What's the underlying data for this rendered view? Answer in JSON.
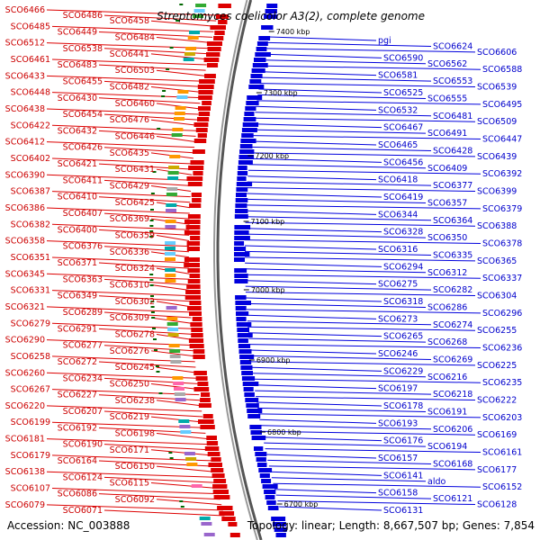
{
  "title": "Streptomyces coelicolor A3(2), complete genome",
  "accession_text": "Accession: NC_003888",
  "topology_text": "Topology: linear; Length: 8,667,507 bp; Genes: 7,854",
  "colors": {
    "forward": "#dd0000",
    "reverse": "#0000dd",
    "backbone": "#888888",
    "tick": "#006600"
  },
  "ticks": [
    {
      "label": "7400 kbp",
      "side": "right"
    },
    {
      "label": "7300 kbp",
      "side": "right"
    },
    {
      "label": "7200 kbp",
      "side": "right"
    },
    {
      "label": "7100 kbp",
      "side": "right"
    },
    {
      "label": "7000 kbp",
      "side": "right"
    },
    {
      "label": "6900 kbp",
      "side": "right"
    },
    {
      "label": "6800 kbp",
      "side": "right"
    },
    {
      "label": "6700 kbp",
      "side": "right"
    }
  ],
  "left_labels": [
    "SCO6466",
    "SCO6486",
    "SCO6458",
    "SCO6485",
    "SCO6449",
    "SCO6484",
    "SCO6512",
    "SCO6538",
    "SCO6441",
    "SCO6461",
    "SCO6483",
    "SCO6503",
    "SCO6433",
    "SCO6455",
    "SCO6482",
    "SCO6448",
    "SCO6430",
    "SCO6460",
    "SCO6438",
    "SCO6454",
    "SCO6476",
    "SCO6422",
    "SCO6432",
    "SCO6446",
    "SCO6412",
    "SCO6426",
    "SCO6435",
    "SCO6402",
    "SCO6421",
    "SCO6431",
    "SCO6390",
    "SCO6411",
    "SCO6429",
    "SCO6387",
    "SCO6410",
    "SCO6425",
    "SCO6386",
    "SCO6407",
    "SCO6369",
    "SCO6382",
    "SCO6400",
    "SCO6359",
    "SCO6358",
    "SCO6376",
    "SCO6336",
    "SCO6351",
    "SCO6371",
    "SCO6324",
    "SCO6345",
    "SCO6363",
    "SCO6310",
    "SCO6331",
    "SCO6349",
    "SCO6302",
    "SCO6321",
    "SCO6289",
    "SCO6309",
    "SCO6279",
    "SCO6291",
    "SCO6278",
    "SCO6290",
    "SCO6277",
    "SCO6276",
    "SCO6258",
    "SCO6272",
    "SCO6245",
    "SCO6260",
    "SCO6234",
    "SCO6250",
    "SCO6267",
    "SCO6227",
    "SCO6238",
    "SCO6220",
    "SCO6207",
    "SCO6219",
    "SCO6199",
    "SCO6192",
    "SCO6198",
    "SCO6181",
    "SCO6190",
    "SCO6171",
    "SCO6179",
    "SCO6164",
    "SCO6150",
    "SCO6138",
    "SCO6124",
    "SCO6115",
    "SCO6107",
    "SCO6086",
    "SCO6092",
    "SCO6079",
    "SCO6071"
  ],
  "right_labels": [
    "pgi",
    "SCO6624",
    "SCO6606",
    "SCO6590",
    "SCO6562",
    "SCO6588",
    "SCO6581",
    "SCO6553",
    "SCO6539",
    "SCO6525",
    "SCO6555",
    "SCO6495",
    "SCO6532",
    "SCO6481",
    "SCO6509",
    "SCO6467",
    "SCO6491",
    "SCO6447",
    "SCO6465",
    "SCO6428",
    "SCO6439",
    "SCO6456",
    "SCO6409",
    "SCO6392",
    "SCO6418",
    "SCO6377",
    "SCO6399",
    "SCO6419",
    "SCO6357",
    "SCO6379",
    "SCO6344",
    "SCO6364",
    "SCO6388",
    "SCO6328",
    "SCO6350",
    "SCO6378",
    "SCO6316",
    "SCO6335",
    "SCO6365",
    "SCO6294",
    "SCO6312",
    "SCO6337",
    "SCO6275",
    "SCO6282",
    "SCO6304",
    "SCO6318",
    "SCO6286",
    "SCO6296",
    "SCO6273",
    "SCO6274",
    "SCO6255",
    "SCO6265",
    "SCO6268",
    "SCO6236",
    "SCO6246",
    "SCO6269",
    "SCO6225",
    "SCO6229",
    "SCO6216",
    "SCO6235",
    "SCO6197",
    "SCO6218",
    "SCO6222",
    "SCO6178",
    "SCO6191",
    "SCO6203",
    "SCO6193",
    "SCO6206",
    "SCO6169",
    "SCO6176",
    "SCO6194",
    "SCO6161",
    "SCO6157",
    "SCO6168",
    "SCO6177",
    "SCO6141",
    "aldo",
    "SCO6152",
    "SCO6158",
    "SCO6121",
    "SCO6128",
    "SCO6131"
  ]
}
